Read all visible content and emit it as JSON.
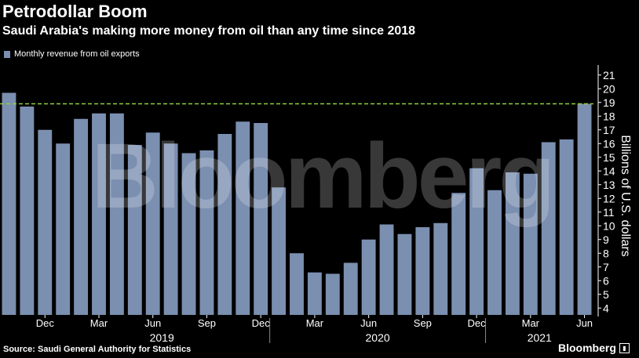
{
  "header": {
    "title": "Petrodollar Boom",
    "subtitle": "Saudi Arabia's making more money from oil than any time since 2018"
  },
  "footer": {
    "source": "Source: Saudi General Authority for Statistics",
    "brand": "Bloomberg"
  },
  "watermark": "Bloomberg",
  "colors": {
    "bar": "#7b8fb0",
    "reference_line": "#8fcf3f",
    "background": "#000000"
  },
  "chart_data": {
    "type": "bar",
    "title": "Petrodollar Boom",
    "subtitle": "Saudi Arabia's making more money from oil than any time since 2018",
    "series": [
      {
        "name": "Monthly revenue from oil exports",
        "values": [
          19.7,
          18.7,
          17.0,
          16.0,
          17.8,
          18.2,
          18.2,
          15.9,
          16.8,
          16.0,
          15.3,
          15.5,
          16.7,
          17.6,
          17.5,
          12.8,
          8.0,
          6.6,
          6.5,
          7.3,
          9.0,
          10.1,
          9.4,
          9.9,
          10.2,
          12.4,
          14.2,
          12.6,
          13.9,
          13.8,
          16.1,
          16.3,
          18.9
        ]
      }
    ],
    "categories": [
      "Oct 2018",
      "Nov 2018",
      "Dec 2018",
      "Jan 2019",
      "Feb 2019",
      "Mar 2019",
      "Apr 2019",
      "May 2019",
      "Jun 2019",
      "Jul 2019",
      "Aug 2019",
      "Sep 2019",
      "Oct 2019",
      "Nov 2019",
      "Dec 2019",
      "Jan 2020",
      "Feb 2020",
      "Mar 2020",
      "Apr 2020",
      "May 2020",
      "Jun 2020",
      "Jul 2020",
      "Aug 2020",
      "Sep 2020",
      "Oct 2020",
      "Nov 2020",
      "Dec 2020",
      "Jan 2021",
      "Feb 2021",
      "Mar 2021",
      "Apr 2021",
      "May 2021",
      "Jun 2021"
    ],
    "x_tick_labels": [
      {
        "index": 2,
        "label": "Dec"
      },
      {
        "index": 5,
        "label": "Mar"
      },
      {
        "index": 8,
        "label": "Jun"
      },
      {
        "index": 11,
        "label": "Sep"
      },
      {
        "index": 14,
        "label": "Dec"
      },
      {
        "index": 17,
        "label": "Mar"
      },
      {
        "index": 20,
        "label": "Jun"
      },
      {
        "index": 23,
        "label": "Sep"
      },
      {
        "index": 26,
        "label": "Dec"
      },
      {
        "index": 29,
        "label": "Mar"
      },
      {
        "index": 32,
        "label": "Jun"
      }
    ],
    "year_labels": [
      {
        "label": "2019",
        "start_index": 3,
        "end_index": 14
      },
      {
        "label": "2020",
        "start_index": 15,
        "end_index": 26
      },
      {
        "label": "2021",
        "start_index": 27,
        "end_index": 32
      }
    ],
    "year_dividers": [
      14.5,
      26.5
    ],
    "reference_line": 18.9,
    "ylabel": "Billions of U.S. dollars",
    "ylim": [
      3.5,
      21.5
    ],
    "y_ticks": [
      4,
      5,
      6,
      7,
      8,
      9,
      10,
      11,
      12,
      13,
      14,
      15,
      16,
      17,
      18,
      19,
      20,
      21
    ],
    "y_axis_side": "right",
    "legend_position": "top-left",
    "grid": false
  }
}
